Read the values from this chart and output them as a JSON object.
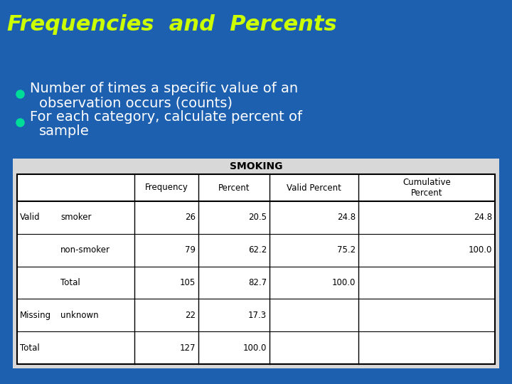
{
  "title": "Frequencies  and  Percents",
  "title_color": "#CCFF00",
  "title_fontsize": 22,
  "bg_color": "#1e60b0",
  "bullet_color": "#00DD99",
  "bullet_fontsize": 14,
  "table_title": "SMOKING",
  "col_headers": [
    "Frequency",
    "Percent",
    "Valid Percent",
    "Cumulative\nPercent"
  ],
  "rows": [
    [
      "Valid",
      "smoker",
      "26",
      "20.5",
      "24.8",
      "24.8"
    ],
    [
      "",
      "non-smoker",
      "79",
      "62.2",
      "75.2",
      "100.0"
    ],
    [
      "",
      "Total",
      "105",
      "82.7",
      "100.0",
      ""
    ],
    [
      "Missing",
      "unknown",
      "22",
      "17.3",
      "",
      ""
    ],
    [
      "Total",
      "",
      "127",
      "100.0",
      "",
      ""
    ]
  ],
  "table_bg": "#e8e8e8",
  "table_text": "#000000",
  "white": "#ffffff"
}
